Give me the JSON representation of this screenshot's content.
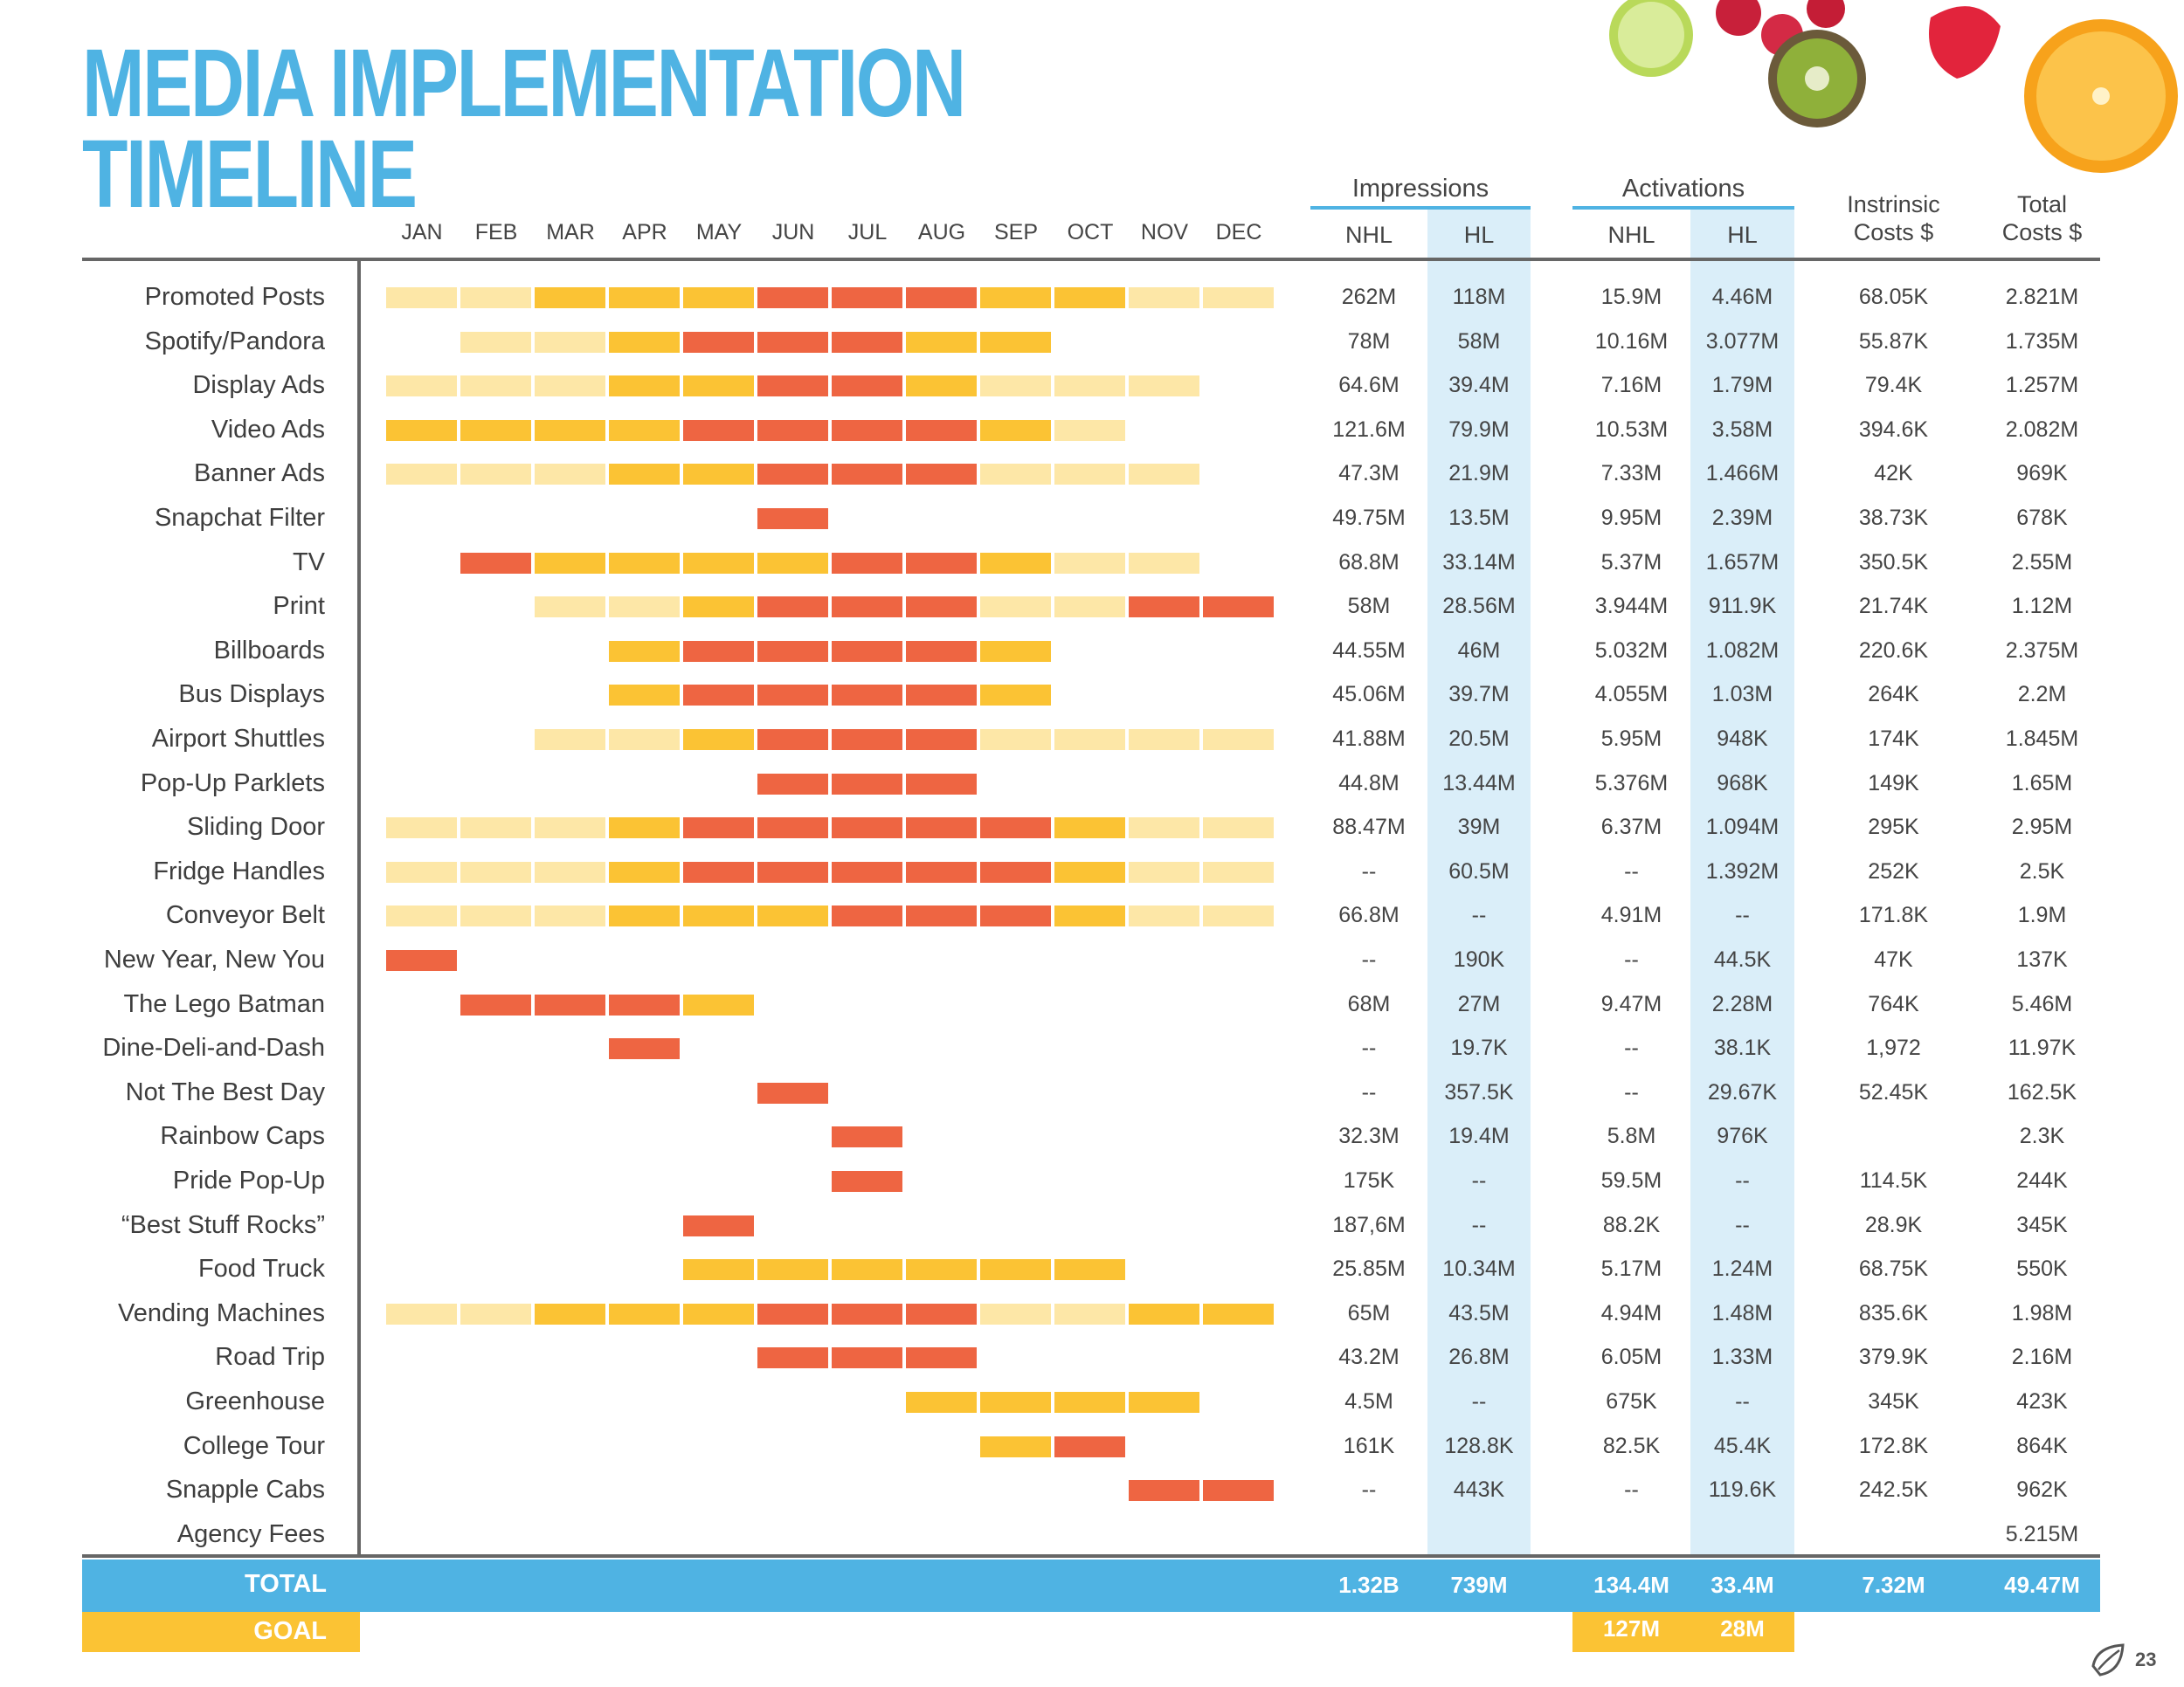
{
  "title": {
    "line1": "MEDIA IMPLEMENTATION",
    "line2": "TIMELINE"
  },
  "colors": {
    "light": "#fde7a7",
    "medium": "#fbc334",
    "high": "#ee6542",
    "accent": "#4fb3e3",
    "band": "#daeef9"
  },
  "decor": {
    "image": "fresh-fruit-photo"
  },
  "months": [
    "JAN",
    "FEB",
    "MAR",
    "APR",
    "MAY",
    "JUN",
    "JUL",
    "AUG",
    "SEP",
    "OCT",
    "NOV",
    "DEC"
  ],
  "headers": {
    "impressions": "Impressions",
    "activations": "Activations",
    "nhl": "NHL",
    "hl": "HL",
    "intrinsic_line1": "Instrinsic",
    "intrinsic_line2": "Costs $",
    "total_line1": "Total",
    "total_line2": "Costs $"
  },
  "rows": [
    {
      "label": "Promoted Posts",
      "bars": [
        0,
        0,
        1,
        1,
        1,
        2,
        2,
        2,
        1,
        1,
        0,
        0
      ],
      "imp_nhl": "262M",
      "imp_hl": "118M",
      "act_nhl": "15.9M",
      "act_hl": "4.46M",
      "intrinsic": "68.05K",
      "total": "2.821M"
    },
    {
      "label": "Spotify/Pandora",
      "bars": [
        null,
        0,
        0,
        1,
        2,
        2,
        2,
        1,
        1,
        null,
        null,
        null
      ],
      "imp_nhl": "78M",
      "imp_hl": "58M",
      "act_nhl": "10.16M",
      "act_hl": "3.077M",
      "intrinsic": "55.87K",
      "total": "1.735M"
    },
    {
      "label": "Display Ads",
      "bars": [
        0,
        0,
        0,
        1,
        1,
        2,
        2,
        1,
        0,
        0,
        0,
        null
      ],
      "imp_nhl": "64.6M",
      "imp_hl": "39.4M",
      "act_nhl": "7.16M",
      "act_hl": "1.79M",
      "intrinsic": "79.4K",
      "total": "1.257M"
    },
    {
      "label": "Video Ads",
      "bars": [
        1,
        1,
        1,
        1,
        2,
        2,
        2,
        2,
        1,
        0,
        null,
        null
      ],
      "imp_nhl": "121.6M",
      "imp_hl": "79.9M",
      "act_nhl": "10.53M",
      "act_hl": "3.58M",
      "intrinsic": "394.6K",
      "total": "2.082M"
    },
    {
      "label": "Banner Ads",
      "bars": [
        0,
        0,
        0,
        1,
        1,
        2,
        2,
        2,
        0,
        0,
        0,
        null
      ],
      "imp_nhl": "47.3M",
      "imp_hl": "21.9M",
      "act_nhl": "7.33M",
      "act_hl": "1.466M",
      "intrinsic": "42K",
      "total": "969K"
    },
    {
      "label": "Snapchat Filter",
      "bars": [
        null,
        null,
        null,
        null,
        null,
        2,
        null,
        null,
        null,
        null,
        null,
        null
      ],
      "imp_nhl": "49.75M",
      "imp_hl": "13.5M",
      "act_nhl": "9.95M",
      "act_hl": "2.39M",
      "intrinsic": "38.73K",
      "total": "678K"
    },
    {
      "label": "TV",
      "bars": [
        null,
        2,
        1,
        1,
        1,
        1,
        2,
        2,
        1,
        0,
        0,
        null
      ],
      "imp_nhl": "68.8M",
      "imp_hl": "33.14M",
      "act_nhl": "5.37M",
      "act_hl": "1.657M",
      "intrinsic": "350.5K",
      "total": "2.55M"
    },
    {
      "label": "Print",
      "bars": [
        null,
        null,
        0,
        0,
        1,
        2,
        2,
        2,
        0,
        0,
        2,
        2
      ],
      "imp_nhl": "58M",
      "imp_hl": "28.56M",
      "act_nhl": "3.944M",
      "act_hl": "911.9K",
      "intrinsic": "21.74K",
      "total": "1.12M"
    },
    {
      "label": "Billboards",
      "bars": [
        null,
        null,
        null,
        1,
        2,
        2,
        2,
        2,
        1,
        null,
        null,
        null
      ],
      "imp_nhl": "44.55M",
      "imp_hl": "46M",
      "act_nhl": "5.032M",
      "act_hl": "1.082M",
      "intrinsic": "220.6K",
      "total": "2.375M"
    },
    {
      "label": "Bus Displays",
      "bars": [
        null,
        null,
        null,
        1,
        2,
        2,
        2,
        2,
        1,
        null,
        null,
        null
      ],
      "imp_nhl": "45.06M",
      "imp_hl": "39.7M",
      "act_nhl": "4.055M",
      "act_hl": "1.03M",
      "intrinsic": "264K",
      "total": "2.2M"
    },
    {
      "label": "Airport Shuttles",
      "bars": [
        null,
        null,
        0,
        0,
        1,
        2,
        2,
        2,
        0,
        0,
        0,
        0
      ],
      "imp_nhl": "41.88M",
      "imp_hl": "20.5M",
      "act_nhl": "5.95M",
      "act_hl": "948K",
      "intrinsic": "174K",
      "total": "1.845M"
    },
    {
      "label": "Pop-Up Parklets",
      "bars": [
        null,
        null,
        null,
        null,
        null,
        2,
        2,
        2,
        null,
        null,
        null,
        null
      ],
      "imp_nhl": "44.8M",
      "imp_hl": "13.44M",
      "act_nhl": "5.376M",
      "act_hl": "968K",
      "intrinsic": "149K",
      "total": "1.65M"
    },
    {
      "label": "Sliding Door",
      "bars": [
        0,
        0,
        0,
        1,
        2,
        2,
        2,
        2,
        2,
        1,
        0,
        0
      ],
      "imp_nhl": "88.47M",
      "imp_hl": "39M",
      "act_nhl": "6.37M",
      "act_hl": "1.094M",
      "intrinsic": "295K",
      "total": "2.95M"
    },
    {
      "label": "Fridge Handles",
      "bars": [
        0,
        0,
        0,
        1,
        2,
        2,
        2,
        2,
        2,
        1,
        0,
        0
      ],
      "imp_nhl": "--",
      "imp_hl": "60.5M",
      "act_nhl": "--",
      "act_hl": "1.392M",
      "intrinsic": "252K",
      "total": "2.5K"
    },
    {
      "label": "Conveyor Belt",
      "bars": [
        0,
        0,
        0,
        1,
        1,
        1,
        2,
        2,
        2,
        1,
        0,
        0
      ],
      "imp_nhl": "66.8M",
      "imp_hl": "--",
      "act_nhl": "4.91M",
      "act_hl": "--",
      "intrinsic": "171.8K",
      "total": "1.9M"
    },
    {
      "label": "New Year, New You",
      "bars": [
        2,
        null,
        null,
        null,
        null,
        null,
        null,
        null,
        null,
        null,
        null,
        null
      ],
      "imp_nhl": "--",
      "imp_hl": "190K",
      "act_nhl": "--",
      "act_hl": "44.5K",
      "intrinsic": "47K",
      "total": "137K"
    },
    {
      "label": "The Lego Batman",
      "bars": [
        null,
        2,
        2,
        2,
        1,
        null,
        null,
        null,
        null,
        null,
        null,
        null
      ],
      "imp_nhl": "68M",
      "imp_hl": "27M",
      "act_nhl": "9.47M",
      "act_hl": "2.28M",
      "intrinsic": "764K",
      "total": "5.46M"
    },
    {
      "label": "Dine-Deli-and-Dash",
      "bars": [
        null,
        null,
        null,
        2,
        null,
        null,
        null,
        null,
        null,
        null,
        null,
        null
      ],
      "imp_nhl": "--",
      "imp_hl": "19.7K",
      "act_nhl": "--",
      "act_hl": "38.1K",
      "intrinsic": "1,972",
      "total": "11.97K"
    },
    {
      "label": "Not The Best Day",
      "bars": [
        null,
        null,
        null,
        null,
        null,
        2,
        null,
        null,
        null,
        null,
        null,
        null
      ],
      "imp_nhl": "--",
      "imp_hl": "357.5K",
      "act_nhl": "--",
      "act_hl": "29.67K",
      "intrinsic": "52.45K",
      "total": "162.5K"
    },
    {
      "label": "Rainbow Caps",
      "bars": [
        null,
        null,
        null,
        null,
        null,
        null,
        2,
        null,
        null,
        null,
        null,
        null
      ],
      "imp_nhl": "32.3M",
      "imp_hl": "19.4M",
      "act_nhl": "5.8M",
      "act_hl": "976K",
      "intrinsic": "",
      "total": "2.3K"
    },
    {
      "label": "Pride Pop-Up",
      "bars": [
        null,
        null,
        null,
        null,
        null,
        null,
        2,
        null,
        null,
        null,
        null,
        null
      ],
      "imp_nhl": "175K",
      "imp_hl": "--",
      "act_nhl": "59.5M",
      "act_hl": "--",
      "intrinsic": "114.5K",
      "total": "244K"
    },
    {
      "label": "“Best Stuff Rocks”",
      "bars": [
        null,
        null,
        null,
        null,
        2,
        null,
        null,
        null,
        null,
        null,
        null,
        null
      ],
      "imp_nhl": "187,6M",
      "imp_hl": "--",
      "act_nhl": "88.2K",
      "act_hl": "--",
      "intrinsic": "28.9K",
      "total": "345K"
    },
    {
      "label": "Food Truck",
      "bars": [
        null,
        null,
        null,
        null,
        1,
        1,
        1,
        1,
        1,
        1,
        null,
        null
      ],
      "imp_nhl": "25.85M",
      "imp_hl": "10.34M",
      "act_nhl": "5.17M",
      "act_hl": "1.24M",
      "intrinsic": "68.75K",
      "total": "550K"
    },
    {
      "label": "Vending Machines",
      "bars": [
        0,
        0,
        1,
        1,
        1,
        2,
        2,
        2,
        0,
        0,
        1,
        1
      ],
      "imp_nhl": "65M",
      "imp_hl": "43.5M",
      "act_nhl": "4.94M",
      "act_hl": "1.48M",
      "intrinsic": "835.6K",
      "total": "1.98M"
    },
    {
      "label": "Road Trip",
      "bars": [
        null,
        null,
        null,
        null,
        null,
        2,
        2,
        2,
        null,
        null,
        null,
        null
      ],
      "imp_nhl": "43.2M",
      "imp_hl": "26.8M",
      "act_nhl": "6.05M",
      "act_hl": "1.33M",
      "intrinsic": "379.9K",
      "total": "2.16M"
    },
    {
      "label": "Greenhouse",
      "bars": [
        null,
        null,
        null,
        null,
        null,
        null,
        null,
        1,
        1,
        1,
        1,
        null
      ],
      "imp_nhl": "4.5M",
      "imp_hl": "--",
      "act_nhl": "675K",
      "act_hl": "--",
      "intrinsic": "345K",
      "total": "423K"
    },
    {
      "label": "College Tour",
      "bars": [
        null,
        null,
        null,
        null,
        null,
        null,
        null,
        null,
        1,
        2,
        null,
        null
      ],
      "imp_nhl": "161K",
      "imp_hl": "128.8K",
      "act_nhl": "82.5K",
      "act_hl": "45.4K",
      "intrinsic": "172.8K",
      "total": "864K"
    },
    {
      "label": "Snapple Cabs",
      "bars": [
        null,
        null,
        null,
        null,
        null,
        null,
        null,
        null,
        null,
        null,
        2,
        2
      ],
      "imp_nhl": "--",
      "imp_hl": "443K",
      "act_nhl": "--",
      "act_hl": "119.6K",
      "intrinsic": "242.5K",
      "total": "962K"
    },
    {
      "label": "Agency Fees",
      "bars": [
        null,
        null,
        null,
        null,
        null,
        null,
        null,
        null,
        null,
        null,
        null,
        null
      ],
      "imp_nhl": "",
      "imp_hl": "",
      "act_nhl": "",
      "act_hl": "",
      "intrinsic": "",
      "total": "5.215M"
    }
  ],
  "total": {
    "label": "TOTAL",
    "imp_nhl": "1.32B",
    "imp_hl": "739M",
    "act_nhl": "134.4M",
    "act_hl": "33.4M",
    "intrinsic": "7.32M",
    "total": "49.47M"
  },
  "goal": {
    "label": "GOAL",
    "act_nhl": "127M",
    "act_hl": "28M"
  },
  "page_number": "23"
}
